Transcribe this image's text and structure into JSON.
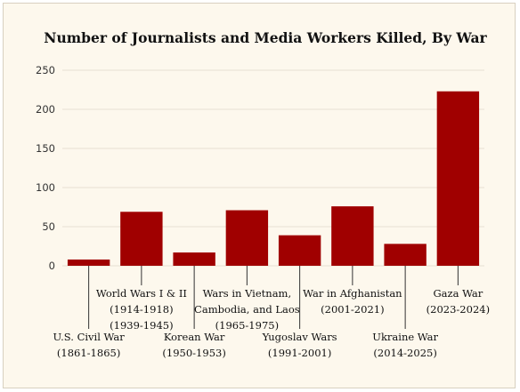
{
  "chart_data": {
    "type": "bar",
    "title": "Number of Journalists and Media Workers Killed, By War",
    "xlabel": "",
    "ylabel": "",
    "ylim": [
      0,
      250
    ],
    "yticks": [
      0,
      50,
      100,
      150,
      200,
      250
    ],
    "grid": true,
    "legend": "none",
    "bar_color": "#a00000",
    "categories": [
      [
        "U.S. Civil War",
        "(1861-1865)"
      ],
      [
        "World Wars I & II",
        "(1914-1918)",
        "(1939-1945)"
      ],
      [
        "Korean War",
        "(1950-1953)"
      ],
      [
        "Wars in Vietnam,",
        "Cambodia, and Laos",
        "(1965-1975)"
      ],
      [
        "Yugoslav Wars",
        "(1991-2001)"
      ],
      [
        "War in Afghanistan",
        "(2001-2021)"
      ],
      [
        "Ukraine War",
        "(2014-2025)"
      ],
      [
        "Gaza War",
        "(2023-2024)"
      ]
    ],
    "values": [
      8,
      69,
      17,
      71,
      39,
      76,
      28,
      223
    ]
  }
}
